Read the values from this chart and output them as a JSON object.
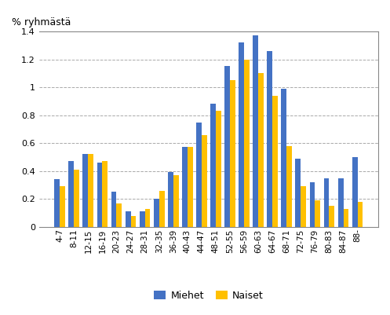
{
  "categories": [
    "4-7",
    "8-11",
    "12-15",
    "16-19",
    "20-23",
    "24-27",
    "28-31",
    "32-35",
    "36-39",
    "40-43",
    "44-47",
    "48-51",
    "52-55",
    "56-59",
    "60-63",
    "64-67",
    "68-71",
    "72-75",
    "76-79",
    "80-83",
    "84-87",
    "88-"
  ],
  "miehet": [
    0.34,
    0.47,
    0.52,
    0.46,
    0.25,
    0.11,
    0.11,
    0.2,
    0.39,
    0.57,
    0.75,
    0.88,
    1.15,
    1.32,
    1.37,
    1.26,
    0.99,
    0.49,
    0.32,
    0.35,
    0.35,
    0.5
  ],
  "naiset": [
    0.29,
    0.41,
    0.52,
    0.47,
    0.17,
    0.08,
    0.13,
    0.26,
    0.37,
    0.57,
    0.66,
    0.83,
    1.05,
    1.2,
    1.1,
    0.94,
    0.58,
    0.29,
    0.19,
    0.15,
    0.13,
    0.18
  ],
  "miehet_color": "#4472C4",
  "naiset_color": "#FFC000",
  "ylabel": "% ryhmästä",
  "ylim": [
    0,
    1.4
  ],
  "yticks": [
    0,
    0.2,
    0.4,
    0.6,
    0.8,
    1.0,
    1.2,
    1.4
  ],
  "legend_labels": [
    "Miehet",
    "Naiset"
  ],
  "background_color": "#ffffff",
  "grid_color": "#aaaaaa",
  "bar_width": 0.38
}
